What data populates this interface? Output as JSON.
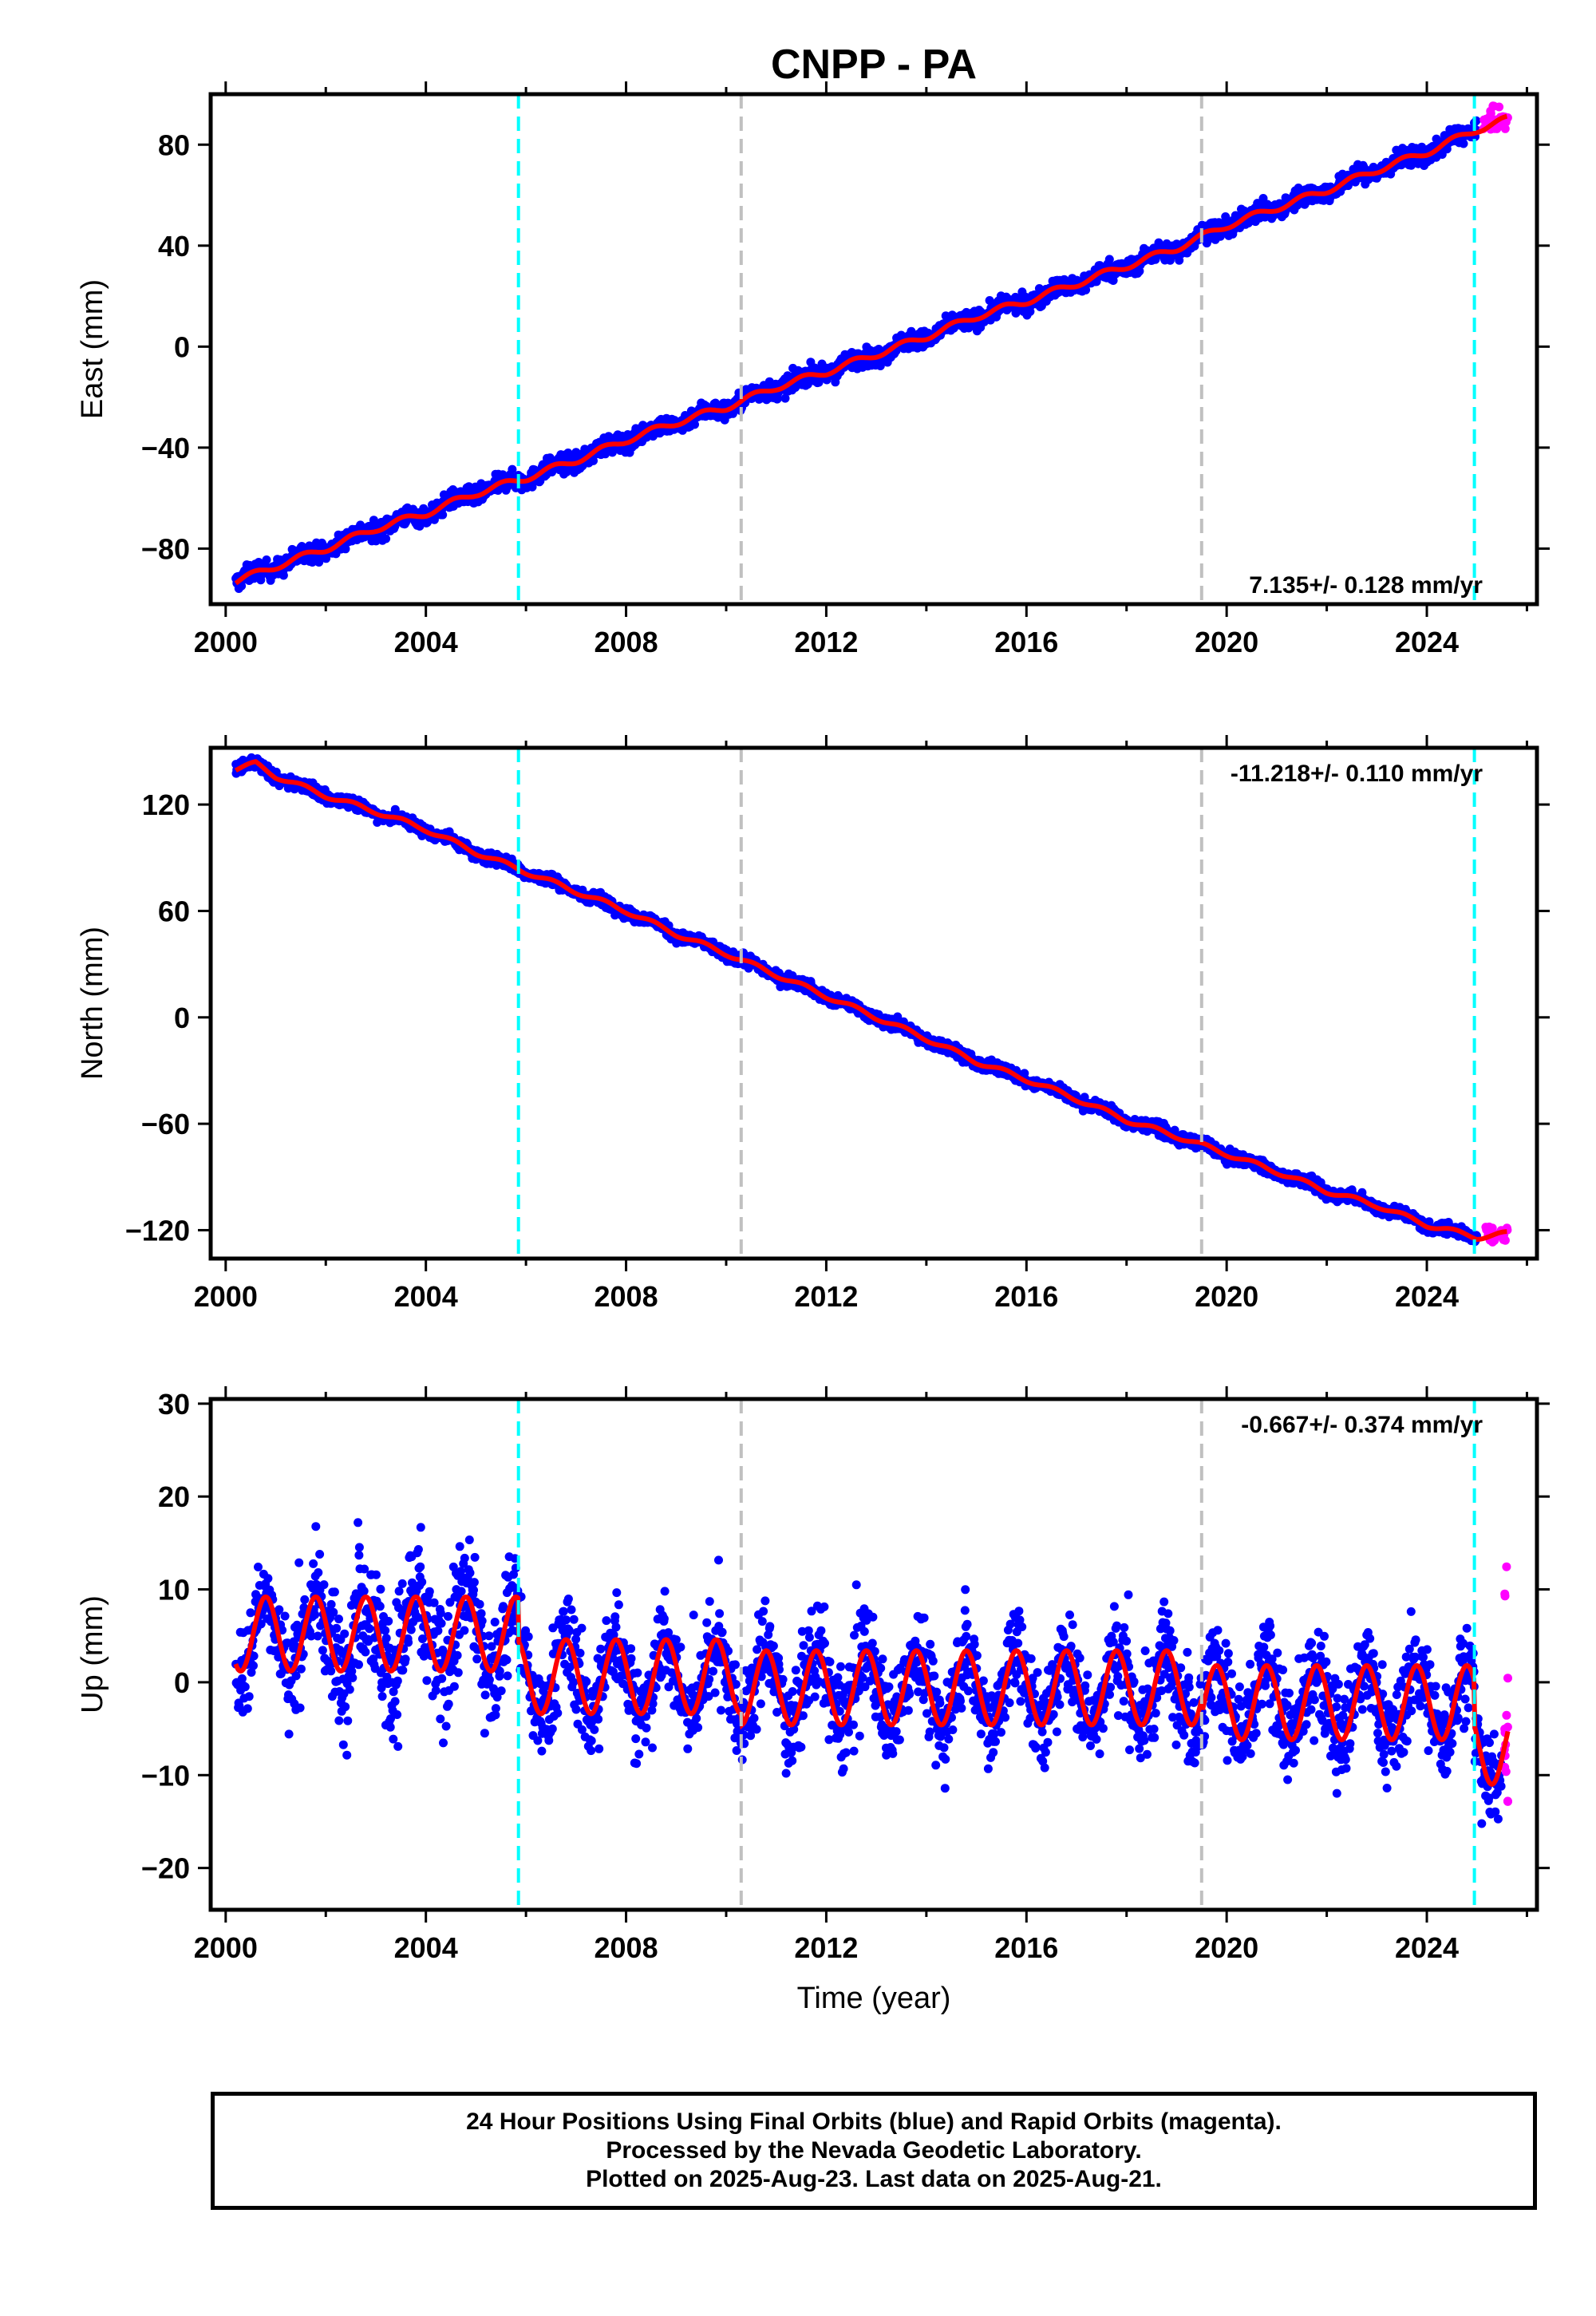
{
  "title": "CNPP - PA",
  "xlabel": "Time (year)",
  "colors": {
    "final": "#0000ff",
    "rapid": "#ff00ff",
    "fit": "#ff0000",
    "equipment_change": "#00ffff",
    "other_event": "#c0c0c0"
  },
  "footer": {
    "line1": "24 Hour Positions Using Final Orbits (blue) and Rapid Orbits (magenta).",
    "line2": "Processed by the Nevada Geodetic Laboratory.",
    "line3": "Plotted on 2025-Aug-23. Last data on 2025-Aug-21."
  },
  "chart_data": [
    {
      "type": "scatter",
      "name": "east",
      "ylabel": "East (mm)",
      "rate_label": "7.135+/- 0.128 mm/yr",
      "rate_position": "bottom-right",
      "xlim": [
        1999.7,
        2026.2
      ],
      "ylim": [
        -102,
        100
      ],
      "xticks": [
        "2000",
        "2004",
        "2008",
        "2012",
        "2016",
        "2020",
        "2024"
      ],
      "yticks": [
        "80",
        "40",
        "0",
        "−40",
        "−80"
      ],
      "ytick_values": [
        80,
        40,
        0,
        -40,
        -80
      ],
      "vlines": [
        {
          "x": 2005.85,
          "color": "cyan"
        },
        {
          "x": 2010.3,
          "color": "gray"
        },
        {
          "x": 2019.5,
          "color": "gray"
        },
        {
          "x": 2024.95,
          "color": "cyan"
        }
      ],
      "fit_curve": {
        "x": [
          2000.2,
          2001.0,
          2002.0,
          2003.0,
          2004.0,
          2005.0,
          2006.0,
          2007.0,
          2008.0,
          2009.0,
          2010.0,
          2011.0,
          2012.0,
          2013.0,
          2014.0,
          2015.0,
          2016.0,
          2017.0,
          2018.0,
          2019.0,
          2020.0,
          2021.0,
          2022.0,
          2023.0,
          2024.0,
          2025.0,
          2025.6
        ],
        "y": [
          -93,
          -87,
          -80,
          -72,
          -66,
          -58,
          -52,
          -45,
          -37,
          -30,
          -24,
          -16,
          -10,
          -3,
          4,
          12,
          18,
          25,
          32,
          39,
          48,
          55,
          62,
          70,
          77,
          86,
          90
        ]
      },
      "final_points": {
        "start": 2000.2,
        "end": 2025.0,
        "spread": 3.0
      },
      "rapid_points": {
        "x_range": [
          2025.1,
          2025.62
        ],
        "y_range": [
          86,
          96
        ]
      }
    },
    {
      "type": "scatter",
      "name": "north",
      "ylabel": "North (mm)",
      "rate_label": "-11.218+/- 0.110 mm/yr",
      "rate_position": "top-right",
      "xlim": [
        1999.7,
        2026.2
      ],
      "ylim": [
        -136,
        152
      ],
      "xticks": [
        "2000",
        "2004",
        "2008",
        "2012",
        "2016",
        "2020",
        "2024"
      ],
      "yticks": [
        "120",
        "60",
        "0",
        "−60",
        "−120"
      ],
      "ytick_values": [
        120,
        60,
        0,
        -60,
        -120
      ],
      "vlines": [
        {
          "x": 2005.85,
          "color": "cyan"
        },
        {
          "x": 2010.3,
          "color": "gray"
        },
        {
          "x": 2019.5,
          "color": "gray"
        },
        {
          "x": 2024.95,
          "color": "cyan"
        }
      ],
      "fit_curve": {
        "x": [
          2000.2,
          2000.6,
          2001.0,
          2002.0,
          2003.0,
          2004.0,
          2005.0,
          2006.0,
          2007.0,
          2008.0,
          2009.0,
          2010.0,
          2011.0,
          2012.0,
          2013.0,
          2014.0,
          2015.0,
          2016.0,
          2017.0,
          2018.0,
          2019.0,
          2020.0,
          2021.0,
          2022.0,
          2023.0,
          2024.0,
          2025.0,
          2025.6
        ],
        "y": [
          140,
          143,
          136,
          125,
          116,
          106,
          93,
          82,
          71,
          60,
          47,
          36,
          24,
          12,
          0,
          -12,
          -25,
          -35,
          -46,
          -58,
          -67,
          -77,
          -87,
          -98,
          -106,
          -117,
          -124,
          -122
        ]
      },
      "final_points": {
        "start": 2000.2,
        "end": 2025.0,
        "spread": 2.8
      },
      "rapid_points": {
        "x_range": [
          2025.1,
          2025.62
        ],
        "y_range": [
          -127,
          -118
        ]
      }
    },
    {
      "type": "scatter",
      "name": "up",
      "ylabel": "Up (mm)",
      "rate_label": "-0.667+/- 0.374 mm/yr",
      "rate_position": "top-right",
      "xlim": [
        1999.7,
        2026.2
      ],
      "ylim": [
        -24.5,
        30.5
      ],
      "xticks": [
        "2000",
        "2004",
        "2008",
        "2012",
        "2016",
        "2020",
        "2024"
      ],
      "yticks": [
        "30",
        "20",
        "10",
        "0",
        "−10",
        "−20"
      ],
      "ytick_values": [
        30,
        20,
        10,
        0,
        -10,
        -20
      ],
      "vlines": [
        {
          "x": 2005.85,
          "color": "cyan"
        },
        {
          "x": 2010.3,
          "color": "gray"
        },
        {
          "x": 2019.5,
          "color": "gray"
        },
        {
          "x": 2024.95,
          "color": "cyan"
        }
      ],
      "fit_model": {
        "offsets": [
          {
            "from": 2000.2,
            "to": 2005.85,
            "mean": 5.2
          },
          {
            "from": 2005.85,
            "to": 2010.3,
            "mean": 0.6
          },
          {
            "from": 2010.3,
            "to": 2019.5,
            "mean": -0.6
          },
          {
            "from": 2019.5,
            "to": 2024.95,
            "mean": -2.2
          },
          {
            "from": 2024.95,
            "to": 2025.62,
            "mean": -7.0
          }
        ],
        "annual_amplitude": 4.0,
        "annual_peak_phase": 0.8
      },
      "final_points": {
        "start": 2000.2,
        "end": 2025.5,
        "spread": 4.2
      },
      "rapid_points": {
        "x_range": [
          2025.55,
          2025.62
        ],
        "y_range": [
          -13,
          14
        ]
      }
    }
  ]
}
